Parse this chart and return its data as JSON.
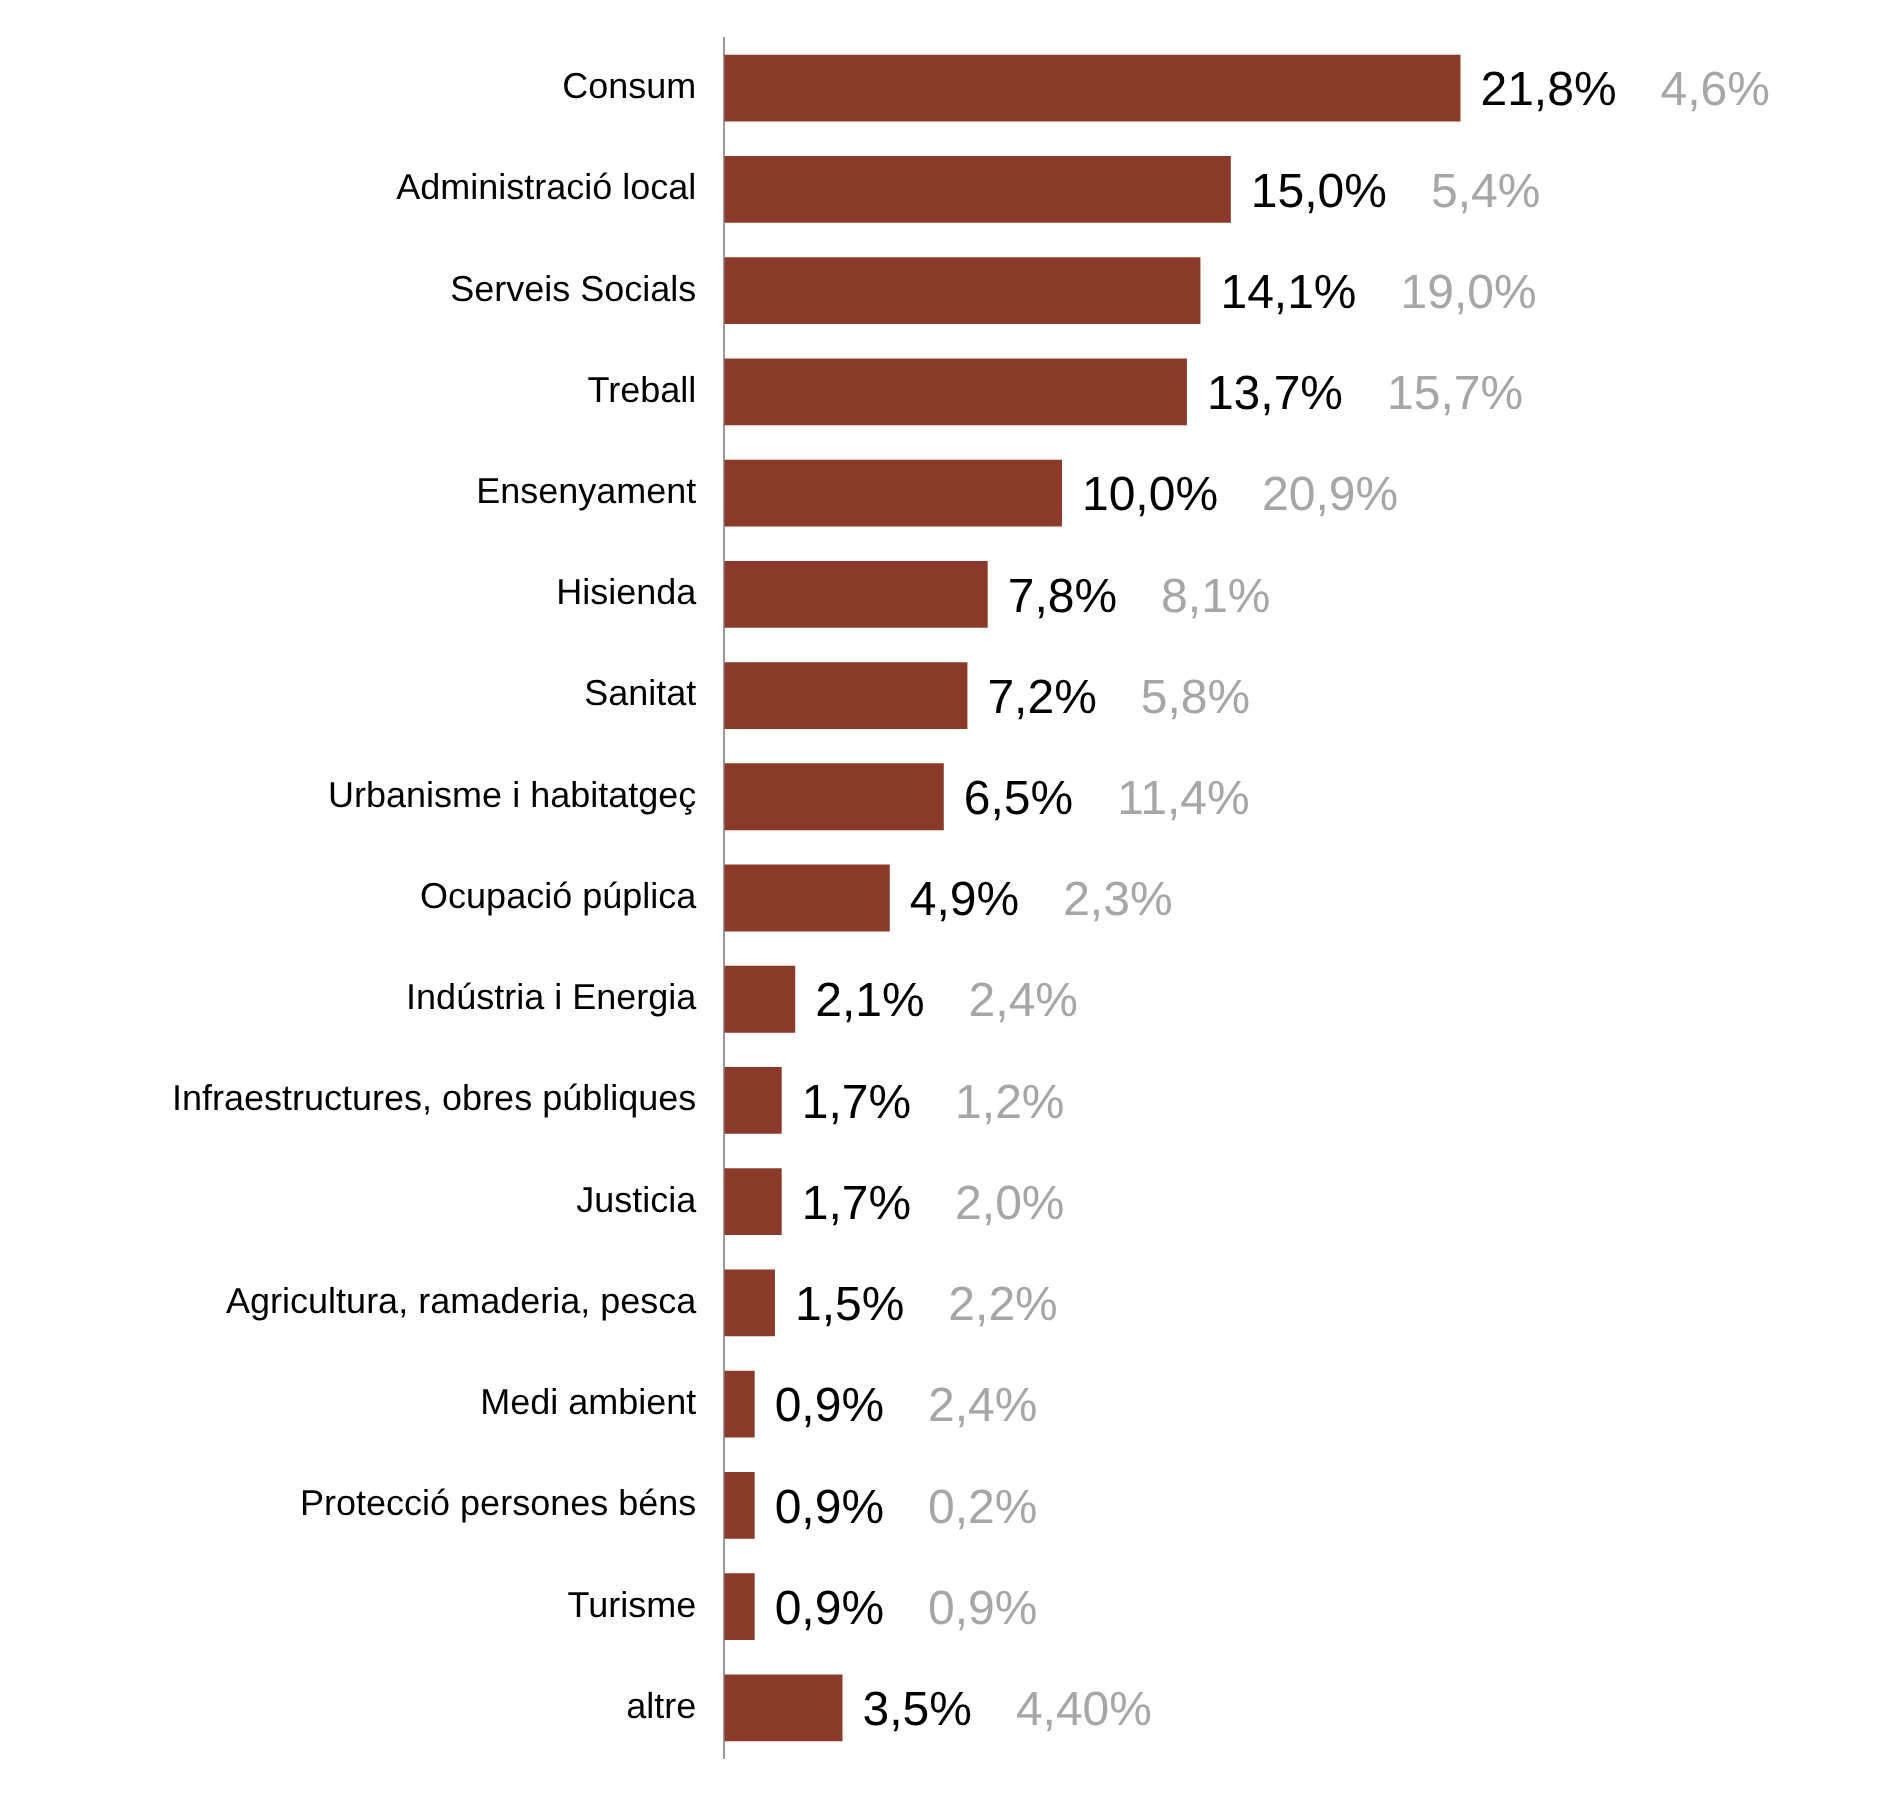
{
  "chart_data": {
    "type": "bar",
    "orientation": "horizontal",
    "categories": [
      "Consum",
      "Administració local",
      "Serveis Socials",
      "Treball",
      "Ensenyament",
      "Hisienda",
      "Sanitat",
      "Urbanisme i habitatgeç",
      "Ocupació púplica",
      "Indústria i Energia",
      "Infraestructures, obres públiques",
      "Justicia",
      "Agricultura, ramaderia, pesca",
      "Medi ambient",
      "Protecció persones béns",
      "Turisme",
      "altre"
    ],
    "values": [
      21.8,
      15.0,
      14.1,
      13.7,
      10.0,
      7.8,
      7.2,
      6.5,
      4.9,
      2.1,
      1.7,
      1.7,
      1.5,
      0.9,
      0.9,
      0.9,
      3.5
    ],
    "value_labels": [
      "21,8%",
      "15,0%",
      "14,1%",
      "13,7%",
      "10,0%",
      "7,8%",
      "7,2%",
      "6,5%",
      "4,9%",
      "2,1%",
      "1,7%",
      "1,7%",
      "1,5%",
      "0,9%",
      "0,9%",
      "0,9%",
      "3,5%"
    ],
    "color": "#8b3a2a",
    "annotations": [
      "4,6%",
      "5,4%",
      "19,0%",
      "15,7%",
      "20,9%",
      "8,1%",
      "5,8%",
      "11,4%",
      "2,3%",
      "2,4%",
      "1,2%",
      "2,0%",
      "2,2%",
      "2,4%",
      "0,2%",
      "0,9%",
      "4,40%"
    ]
  }
}
